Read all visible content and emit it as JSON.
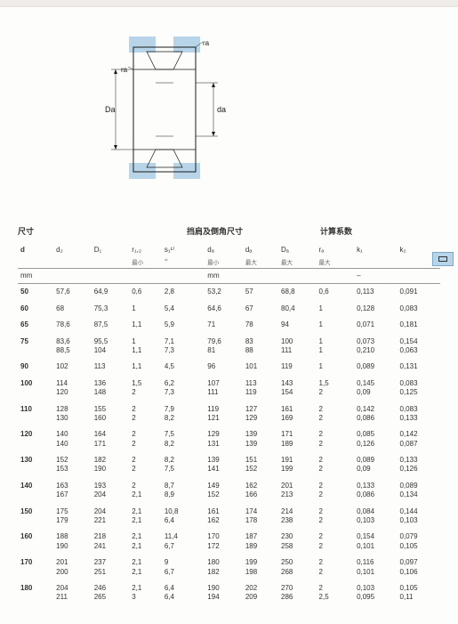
{
  "diagram": {
    "labels": {
      "ra1": "ra",
      "ra2": "ra",
      "Da": "Da",
      "da": "da"
    },
    "colors": {
      "shade": "#b8d4e8",
      "line": "#1a1a1a",
      "bg": "#fdfdfb"
    }
  },
  "sections": {
    "dims": "尺寸",
    "shoulder": "挡肩及倒角尺寸",
    "calc": "计算系数"
  },
  "headers": {
    "d": "d",
    "d2": "d₂",
    "D1": "D₁",
    "r12": "r₁,₂",
    "s1": "s₁¹⁾",
    "da_min": "dₐ",
    "da_max": "dₐ",
    "Da": "Dₐ",
    "ra": "rₐ",
    "k1": "k₁",
    "k2": "k₂"
  },
  "subheaders": {
    "r12": "最小",
    "s1": "≈",
    "da_min": "最小",
    "da_max": "最大",
    "Da": "最大",
    "ra": "最大"
  },
  "units": {
    "mm1": "mm",
    "mm2": "mm",
    "dash": "–"
  },
  "rows": [
    {
      "d": "50",
      "d2": "57,6",
      "D1": "64,9",
      "r12": "0,6",
      "s1": "2,8",
      "da1": "53,2",
      "da2": "57",
      "Da": "68,8",
      "ra": "0,6",
      "k1": "0,113",
      "k2": "0,091"
    },
    {
      "d": "60",
      "d2": "68",
      "D1": "75,3",
      "r12": "1",
      "s1": "5,4",
      "da1": "64,6",
      "da2": "67",
      "Da": "80,4",
      "ra": "1",
      "k1": "0,128",
      "k2": "0,083"
    },
    {
      "d": "65",
      "d2": "78,6",
      "D1": "87,5",
      "r12": "1,1",
      "s1": "5,9",
      "da1": "71",
      "da2": "78",
      "Da": "94",
      "ra": "1",
      "k1": "0,071",
      "k2": "0,181"
    },
    {
      "d": "75",
      "d2": "83,6\n88,5",
      "D1": "95,5\n104",
      "r12": "1\n1,1",
      "s1": "7,1\n7,3",
      "da1": "79,6\n81",
      "da2": "83\n88",
      "Da": "100\n111",
      "ra": "1\n1",
      "k1": "0,073\n0,210",
      "k2": "0,154\n0,063"
    },
    {
      "d": "90",
      "d2": "102",
      "D1": "113",
      "r12": "1,1",
      "s1": "4,5",
      "da1": "96",
      "da2": "101",
      "Da": "119",
      "ra": "1",
      "k1": "0,089",
      "k2": "0,131"
    },
    {
      "d": "100",
      "d2": "114\n120",
      "D1": "136\n148",
      "r12": "1,5\n2",
      "s1": "6,2\n7,3",
      "da1": "107\n111",
      "da2": "113\n119",
      "Da": "143\n154",
      "ra": "1,5\n2",
      "k1": "0,145\n0,09",
      "k2": "0,083\n0,125"
    },
    {
      "d": "110",
      "d2": "128\n130",
      "D1": "155\n160",
      "r12": "2\n2",
      "s1": "7,9\n8,2",
      "da1": "119\n121",
      "da2": "127\n129",
      "Da": "161\n169",
      "ra": "2\n2",
      "k1": "0,142\n0,086",
      "k2": "0,083\n0,133"
    },
    {
      "d": "120",
      "d2": "140\n140",
      "D1": "164\n171",
      "r12": "2\n2",
      "s1": "7,5\n8,2",
      "da1": "129\n131",
      "da2": "139\n139",
      "Da": "171\n189",
      "ra": "2\n2",
      "k1": "0,085\n0,126",
      "k2": "0,142\n0,087"
    },
    {
      "d": "130",
      "d2": "152\n153",
      "D1": "182\n190",
      "r12": "2\n2",
      "s1": "8,2\n7,5",
      "da1": "139\n141",
      "da2": "151\n152",
      "Da": "191\n199",
      "ra": "2\n2",
      "k1": "0,089\n0,09",
      "k2": "0,133\n0,126"
    },
    {
      "d": "140",
      "d2": "163\n167",
      "D1": "193\n204",
      "r12": "2\n2,1",
      "s1": "8,7\n8,9",
      "da1": "149\n152",
      "da2": "162\n166",
      "Da": "201\n213",
      "ra": "2\n2",
      "k1": "0,133\n0,086",
      "k2": "0,089\n0,134"
    },
    {
      "d": "150",
      "d2": "175\n179",
      "D1": "204\n221",
      "r12": "2,1\n2,1",
      "s1": "10,8\n6,4",
      "da1": "161\n162",
      "da2": "174\n178",
      "Da": "214\n238",
      "ra": "2\n2",
      "k1": "0,084\n0,103",
      "k2": "0,144\n0,103"
    },
    {
      "d": "160",
      "d2": "188\n190",
      "D1": "218\n241",
      "r12": "2,1\n2,1",
      "s1": "11,4\n6,7",
      "da1": "170\n172",
      "da2": "187\n189",
      "Da": "230\n258",
      "ra": "2\n2",
      "k1": "0,154\n0,101",
      "k2": "0,079\n0,105"
    },
    {
      "d": "170",
      "d2": "201\n200",
      "D1": "237\n251",
      "r12": "2,1\n2,1",
      "s1": "9\n6,7",
      "da1": "180\n182",
      "da2": "199\n198",
      "Da": "250\n268",
      "ra": "2\n2",
      "k1": "0,116\n0,101",
      "k2": "0,097\n0,106"
    },
    {
      "d": "180",
      "d2": "204\n211",
      "D1": "246\n265",
      "r12": "2,1\n3",
      "s1": "6,4\n6,4",
      "da1": "190\n194",
      "da2": "202\n209",
      "Da": "270\n286",
      "ra": "2\n2,5",
      "k1": "0,103\n0,095",
      "k2": "0,105\n0,11"
    }
  ]
}
